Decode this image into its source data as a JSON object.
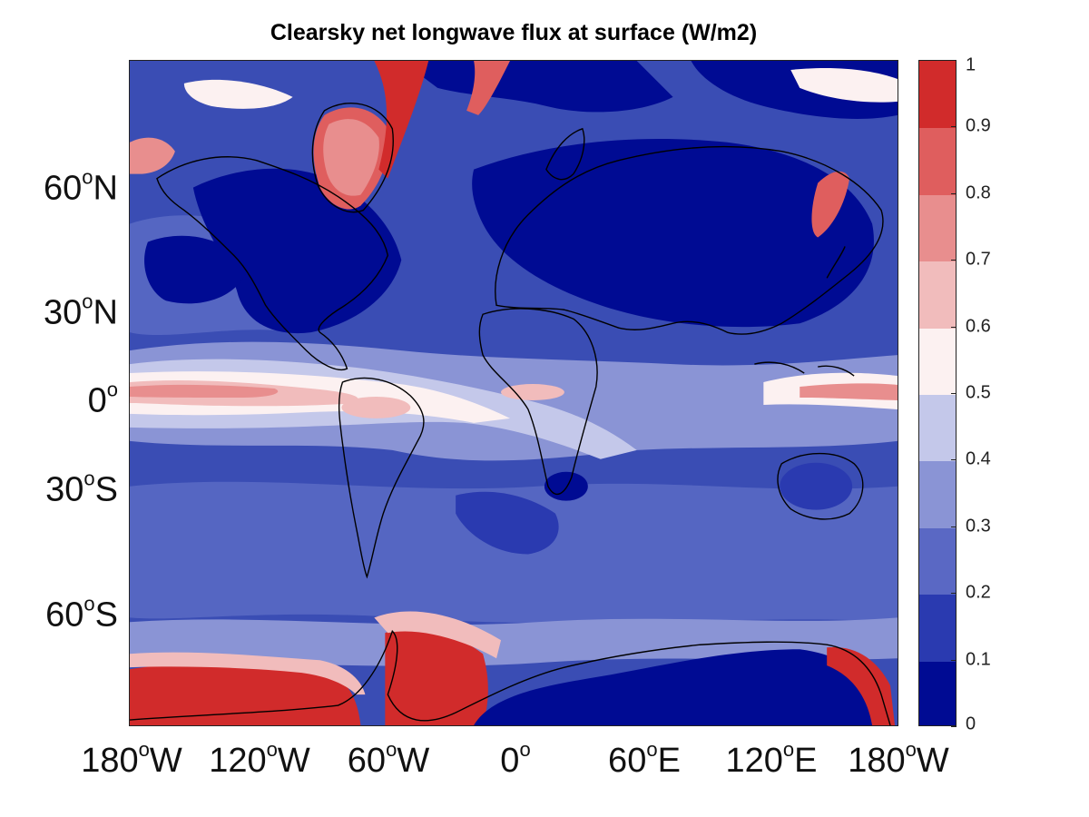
{
  "title": "Clearsky net longwave flux at surface (W/m2)",
  "map": {
    "projection": "equirectangular",
    "lon_range": [
      -180,
      180
    ],
    "lat_range": [
      -90,
      90
    ],
    "lat_ticks": [
      {
        "value": 60,
        "num": "60",
        "hemi": "N"
      },
      {
        "value": 30,
        "num": "30",
        "hemi": "N"
      },
      {
        "value": 0,
        "num": "0",
        "hemi": ""
      },
      {
        "value": -30,
        "num": "30",
        "hemi": "S"
      },
      {
        "value": -60,
        "num": "60",
        "hemi": "S"
      }
    ],
    "lon_ticks": [
      {
        "value": -180,
        "num": "180",
        "hemi": "W"
      },
      {
        "value": -120,
        "num": "120",
        "hemi": "W"
      },
      {
        "value": -60,
        "num": "60",
        "hemi": "W"
      },
      {
        "value": 0,
        "num": "0",
        "hemi": ""
      },
      {
        "value": 60,
        "num": "60",
        "hemi": "E"
      },
      {
        "value": 120,
        "num": "120",
        "hemi": "E"
      },
      {
        "value": 180,
        "num": "180",
        "hemi": "W"
      }
    ],
    "coastlines": "black"
  },
  "colorbar": {
    "levels": [
      0,
      0.1,
      0.2,
      0.3,
      0.4,
      0.5,
      0.6,
      0.7,
      0.8,
      0.9,
      1
    ],
    "tick_labels": [
      "0",
      "0.1",
      "0.2",
      "0.3",
      "0.4",
      "0.5",
      "0.6",
      "0.7",
      "0.8",
      "0.9",
      "1"
    ],
    "colors": [
      "#000b93",
      "#2a3ab0",
      "#5a68c4",
      "#8a94d5",
      "#c4c8ea",
      "#fcf1f1",
      "#f1bcbc",
      "#e88e8e",
      "#df5e5e",
      "#d12b2b"
    ]
  }
}
